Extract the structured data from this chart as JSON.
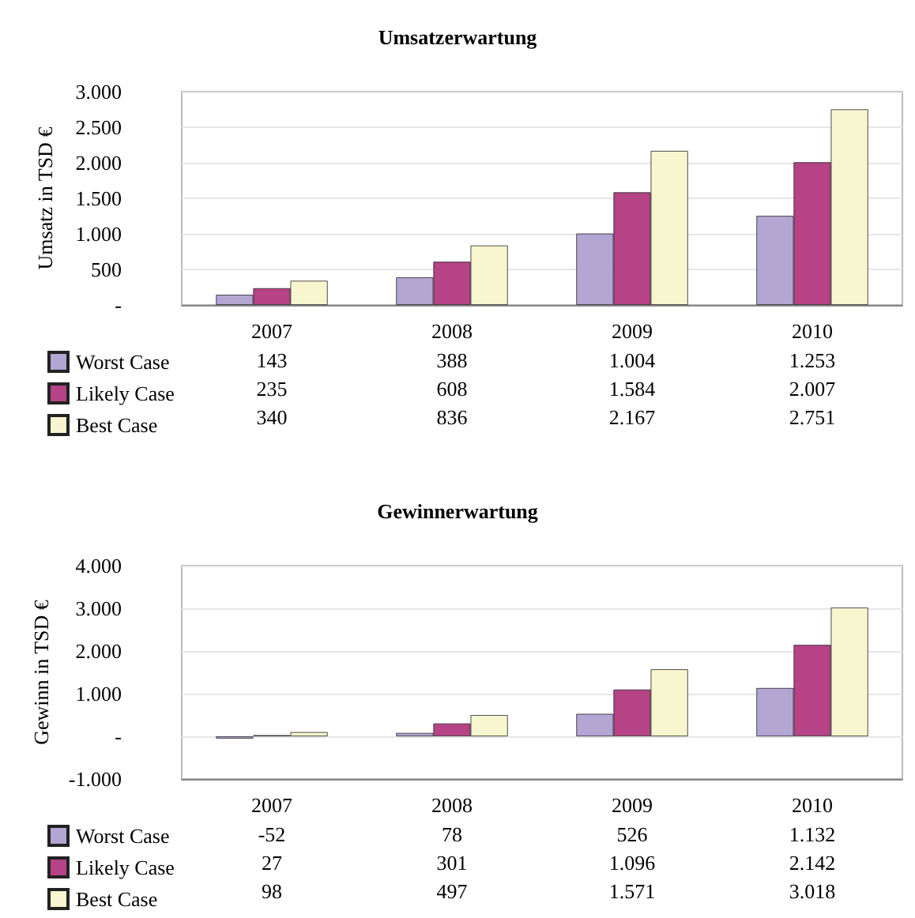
{
  "chart_data": [
    {
      "type": "bar",
      "title": "Umsatzerwartung",
      "ylabel": "Umsatz in TSD €",
      "categories": [
        "2007",
        "2008",
        "2009",
        "2010"
      ],
      "series": [
        {
          "name": "Worst Case",
          "color": "#b3a6d3",
          "values": [
            143,
            388,
            1004,
            1253
          ],
          "value_labels": [
            "143",
            "388",
            "1.004",
            "1.253"
          ]
        },
        {
          "name": "Likely Case",
          "color": "#b54385",
          "values": [
            235,
            608,
            1584,
            2007
          ],
          "value_labels": [
            "235",
            "608",
            "1.584",
            "2.007"
          ]
        },
        {
          "name": "Best Case",
          "color": "#f7f6cf",
          "values": [
            340,
            836,
            2167,
            2751
          ],
          "value_labels": [
            "340",
            "836",
            "2.167",
            "2.751"
          ]
        }
      ],
      "ylim": [
        0,
        3000
      ],
      "yticks": [
        {
          "value": 0,
          "label": "-"
        },
        {
          "value": 500,
          "label": "500"
        },
        {
          "value": 1000,
          "label": "1.000"
        },
        {
          "value": 1500,
          "label": "1.500"
        },
        {
          "value": 2000,
          "label": "2.000"
        },
        {
          "value": 2500,
          "label": "2.500"
        },
        {
          "value": 3000,
          "label": "3.000"
        }
      ],
      "grid": "y",
      "legend": "bottom left"
    },
    {
      "type": "bar",
      "title": "Gewinnerwartung",
      "ylabel": "Gewinn in TSD €",
      "categories": [
        "2007",
        "2008",
        "2009",
        "2010"
      ],
      "series": [
        {
          "name": "Worst Case",
          "color": "#b3a6d3",
          "values": [
            -52,
            78,
            526,
            1132
          ],
          "value_labels": [
            "-52",
            "78",
            "526",
            "1.132"
          ]
        },
        {
          "name": "Likely Case",
          "color": "#b54385",
          "values": [
            27,
            301,
            1096,
            2142
          ],
          "value_labels": [
            "27",
            "301",
            "1.096",
            "2.142"
          ]
        },
        {
          "name": "Best Case",
          "color": "#f7f6cf",
          "values": [
            98,
            497,
            1571,
            3018
          ],
          "value_labels": [
            "98",
            "497",
            "1.571",
            "3.018"
          ]
        }
      ],
      "ylim": [
        -1000,
        4000
      ],
      "yticks": [
        {
          "value": -1000,
          "label": "-1.000"
        },
        {
          "value": 0,
          "label": "-"
        },
        {
          "value": 1000,
          "label": "1.000"
        },
        {
          "value": 2000,
          "label": "2.000"
        },
        {
          "value": 3000,
          "label": "3.000"
        },
        {
          "value": 4000,
          "label": "4.000"
        }
      ],
      "grid": "y",
      "legend": "bottom left"
    }
  ]
}
